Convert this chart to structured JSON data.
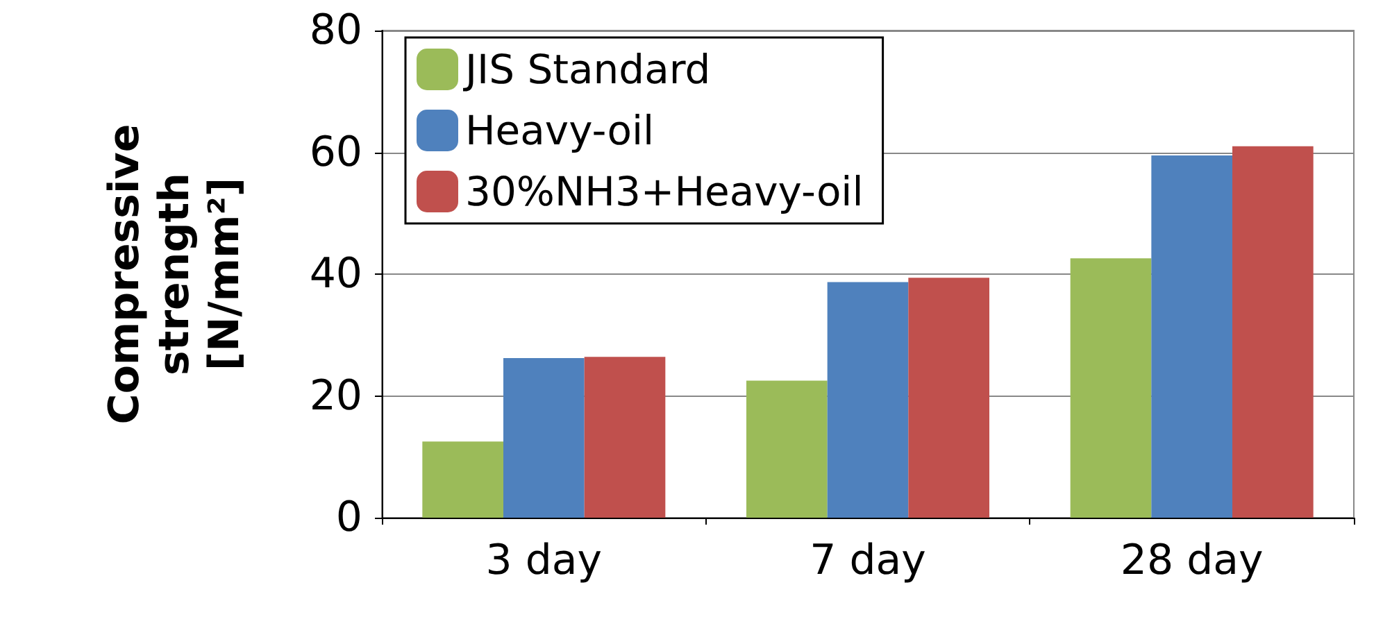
{
  "chart_data": {
    "type": "bar",
    "ylabel": "Compressive strength [N/mm²]",
    "categories": [
      "3 day",
      "7 day",
      "28 day"
    ],
    "series": [
      {
        "name": "JIS Standard",
        "color": "#9bbb59",
        "values": [
          12.5,
          22.5,
          42.6
        ]
      },
      {
        "name": "Heavy-oil",
        "color": "#4f81bd",
        "values": [
          26.2,
          38.7,
          59.5
        ]
      },
      {
        "name": "30%NH3+Heavy-oil",
        "color": "#c0504d",
        "values": [
          26.4,
          39.4,
          61.0
        ]
      }
    ],
    "ylim": [
      0,
      80
    ],
    "yticks": [
      0,
      20,
      40,
      60,
      80
    ],
    "grid": "y",
    "legend": "top left"
  }
}
